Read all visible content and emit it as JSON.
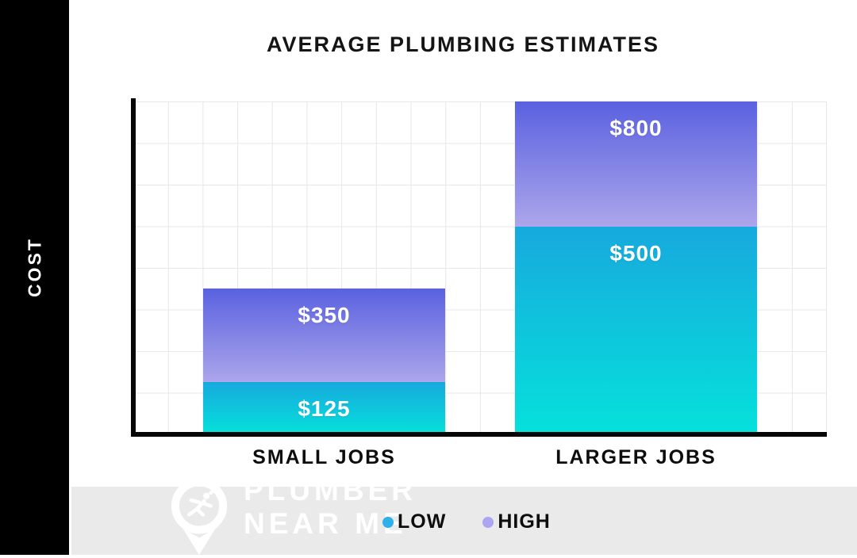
{
  "title": "AVERAGE PLUMBING ESTIMATES",
  "y_axis_label": "COST",
  "chart_data": {
    "type": "bar",
    "subtype": "overlaid-range-bars",
    "categories": [
      "SMALL JOBS",
      "LARGER JOBS"
    ],
    "series": [
      {
        "name": "LOW",
        "values": [
          125,
          500
        ],
        "labels": [
          "$125",
          "$500"
        ],
        "gradient_top": "#17A9DD",
        "gradient_bottom": "#06E1DB"
      },
      {
        "name": "HIGH",
        "values": [
          350,
          800
        ],
        "labels": [
          "$350",
          "$800"
        ],
        "gradient_top": "#5A61E0",
        "gradient_bottom": "#ACA6EB"
      }
    ],
    "title": "AVERAGE PLUMBING ESTIMATES",
    "xlabel": "",
    "ylabel": "COST",
    "ylim": [
      0,
      800
    ],
    "grid": true,
    "grid_rows": 8,
    "grid_cols": 20,
    "grid_value_per_row": 100,
    "legend_position": "bottom"
  },
  "legend": {
    "items": [
      {
        "label": "LOW",
        "color": "#2FB0E8"
      },
      {
        "label": "HIGH",
        "color": "#ABA5F2"
      }
    ]
  },
  "footer": {
    "brand_line1": "PLUMBER",
    "brand_line2": "NEAR ME",
    "logo_icon": "plumber-pin-logo"
  },
  "colors": {
    "cost_band": "#000000",
    "axis": "#060606",
    "grid_line": "#E7E7E7",
    "footer_band": "#EAEAEA",
    "title_text": "#141414",
    "bar_value_text": "#FFFFFF"
  }
}
